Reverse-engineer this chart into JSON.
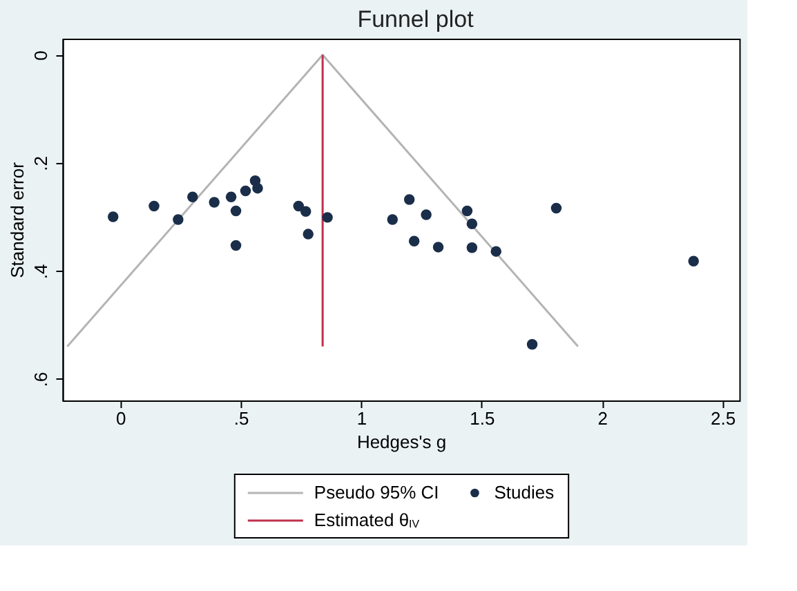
{
  "chart_data": {
    "type": "scatter",
    "title": "Funnel plot",
    "xlabel": "Hedges's g",
    "ylabel": "Standard error",
    "xlim": [
      -0.24,
      2.57
    ],
    "ylim": [
      0.64,
      -0.03
    ],
    "xticks": [
      0,
      {
        "value": 0.5,
        "label": ".5"
      },
      1,
      1.5,
      2,
      2.5
    ],
    "yticks": [
      0,
      {
        "value": 0.2,
        "label": ".2"
      },
      {
        "value": 0.4,
        "label": ".4"
      },
      {
        "value": 0.6,
        "label": ".6"
      }
    ],
    "grid": false,
    "legend": "bottom",
    "series": [
      {
        "name": "Pseudo 95% CI",
        "type": "line",
        "color": "#b4b4b4",
        "x": [
          -0.22,
          0.84,
          1.9
        ],
        "values": [
          0.54,
          0,
          0.54
        ]
      },
      {
        "name": "Estimated θ$_{IV}$",
        "type": "line",
        "color": "#c0304a",
        "x": [
          0.84,
          0.84
        ],
        "values": [
          0,
          0.54
        ]
      },
      {
        "name": "Studies",
        "color": "#1a2e4a",
        "marker": "circle",
        "x": [
          -0.03,
          0.14,
          0.24,
          0.3,
          0.39,
          0.46,
          0.48,
          0.48,
          0.52,
          0.56,
          0.57,
          0.74,
          0.77,
          0.78,
          0.86,
          1.13,
          1.2,
          1.27,
          1.44,
          1.46,
          1.22,
          1.32,
          1.46,
          1.56,
          1.81,
          2.38,
          1.71
        ],
        "values": [
          0.3,
          0.28,
          0.305,
          0.263,
          0.273,
          0.263,
          0.289,
          0.353,
          0.252,
          0.233,
          0.247,
          0.28,
          0.29,
          0.332,
          0.301,
          0.305,
          0.268,
          0.296,
          0.289,
          0.313,
          0.345,
          0.356,
          0.357,
          0.364,
          0.284,
          0.382,
          0.536
        ]
      }
    ]
  }
}
